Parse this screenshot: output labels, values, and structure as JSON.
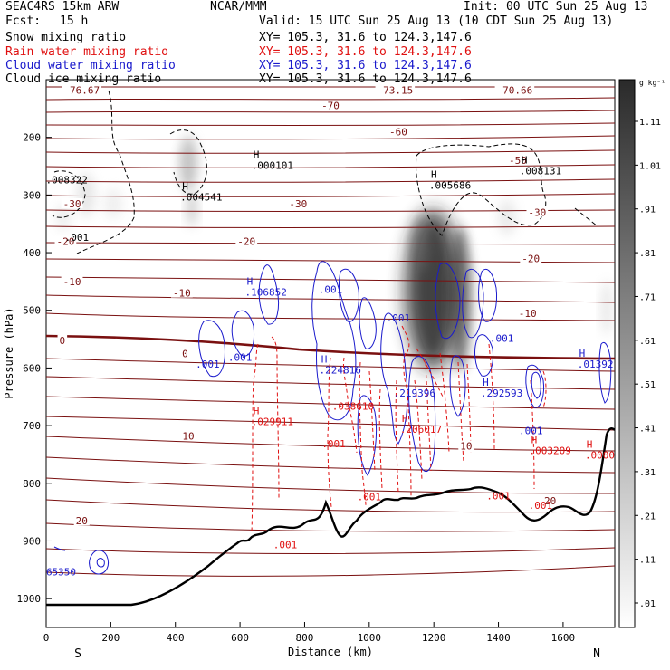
{
  "header": {
    "model": "SEAC4RS 15km ARW",
    "center": "NCAR/MMM",
    "init": "Init: 00 UTC Sun 25 Aug 13",
    "fcst_label": "Fcst:",
    "fcst_value": "15 h",
    "valid": "Valid: 15 UTC Sun 25 Aug 13 (10 CDT Sun 25 Aug 13)",
    "fields": [
      {
        "name": "Snow mixing ratio",
        "xy": "XY= 105.3, 31.6 to 124.3,147.6",
        "color": "#000000"
      },
      {
        "name": "Rain water mixing ratio",
        "xy": "XY= 105.3, 31.6 to 124.3,147.6",
        "color": "#e01010"
      },
      {
        "name": "Cloud water mixing ratio",
        "xy": "XY= 105.3, 31.6 to 124.3,147.6",
        "color": "#1a1acc"
      },
      {
        "name": "Cloud ice mixing ratio",
        "xy": "XY= 105.3, 31.6 to 124.3,147.6",
        "color": "#000000"
      }
    ]
  },
  "chart_data": {
    "type": "cross-section",
    "xlabel": "Distance (km)",
    "ylabel": "Pressure (hPa)",
    "xlim": [
      0,
      1760
    ],
    "ylim": [
      100,
      1050
    ],
    "x_ticks": [
      0,
      200,
      400,
      600,
      800,
      1000,
      1200,
      1400,
      1600
    ],
    "y_ticks": [
      200,
      300,
      400,
      500,
      600,
      700,
      800,
      900,
      1000
    ],
    "direction_left": "S",
    "direction_right": "N",
    "colorbar": {
      "unit": "g kg⁻¹",
      "labels": [
        "1.11",
        "1.01",
        ".91",
        ".81",
        ".71",
        ".61",
        ".51",
        ".41",
        ".31",
        ".21",
        ".11",
        ".01"
      ]
    },
    "temperature_contours": {
      "color": "#7a1010",
      "labels": [
        {
          "text": "-76.67",
          "x": 110,
          "p": 118
        },
        {
          "text": "-73.15",
          "x": 1080,
          "p": 118
        },
        {
          "text": "-70.66",
          "x": 1450,
          "p": 118
        },
        {
          "text": "-70",
          "x": 880,
          "p": 145
        },
        {
          "text": "-60",
          "x": 1090,
          "p": 190
        },
        {
          "text": "-50",
          "x": 1460,
          "p": 240
        },
        {
          "text": "-30",
          "x": 80,
          "p": 315
        },
        {
          "text": "-30",
          "x": 780,
          "p": 315
        },
        {
          "text": "-30",
          "x": 1520,
          "p": 330
        },
        {
          "text": "-20",
          "x": 60,
          "p": 380
        },
        {
          "text": "-20",
          "x": 620,
          "p": 380
        },
        {
          "text": "-20",
          "x": 1500,
          "p": 410
        },
        {
          "text": "-10",
          "x": 80,
          "p": 450
        },
        {
          "text": "-10",
          "x": 420,
          "p": 470
        },
        {
          "text": "-10",
          "x": 1490,
          "p": 505
        },
        {
          "text": "0",
          "x": 50,
          "p": 552
        },
        {
          "text": "0",
          "x": 430,
          "p": 575
        },
        {
          "text": "10",
          "x": 440,
          "p": 718
        },
        {
          "text": "10",
          "x": 1300,
          "p": 735
        },
        {
          "text": "20",
          "x": 110,
          "p": 865
        },
        {
          "text": "20",
          "x": 1560,
          "p": 830
        }
      ]
    },
    "max_labels": [
      {
        "field": "snow",
        "letter": "",
        "text": ".008322",
        "x": 30,
        "p": 270
      },
      {
        "field": "snow",
        "letter": "H",
        "text": ".004541",
        "x": 480,
        "p": 300
      },
      {
        "field": "snow",
        "letter": "H",
        "text": ".000101",
        "x": 700,
        "p": 245
      },
      {
        "field": "snow",
        "letter": "H",
        "text": ".005686",
        "x": 1250,
        "p": 280
      },
      {
        "field": "snow",
        "letter": "H",
        "text": ".008131",
        "x": 1530,
        "p": 255
      },
      {
        "field": "snow",
        "letter": "",
        "text": ".001",
        "x": 95,
        "p": 370
      },
      {
        "field": "cloud",
        "letter": "H",
        "text": ".106852",
        "x": 680,
        "p": 465
      },
      {
        "field": "cloud",
        "letter": "",
        "text": ".001",
        "x": 880,
        "p": 460
      },
      {
        "field": "cloud",
        "letter": "",
        "text": ".001",
        "x": 1090,
        "p": 510
      },
      {
        "field": "cloud",
        "letter": "",
        "text": ".001",
        "x": 1410,
        "p": 545
      },
      {
        "field": "cloud",
        "letter": "",
        "text": ".001",
        "x": 500,
        "p": 590
      },
      {
        "field": "cloud",
        "letter": "",
        "text": ".001",
        "x": 600,
        "p": 578
      },
      {
        "field": "cloud",
        "letter": "H",
        "text": ".224816",
        "x": 910,
        "p": 600
      },
      {
        "field": "cloud",
        "letter": "",
        "text": ".219396",
        "x": 1140,
        "p": 640
      },
      {
        "field": "cloud",
        "letter": "H",
        "text": ".292593",
        "x": 1410,
        "p": 640
      },
      {
        "field": "cloud",
        "letter": "",
        "text": ".001",
        "x": 1500,
        "p": 705
      },
      {
        "field": "cloud",
        "letter": "H",
        "text": ".01392",
        "x": 1700,
        "p": 590
      },
      {
        "field": "cloud",
        "letter": "",
        "text": "65350",
        "x": 40,
        "p": 950
      },
      {
        "field": "rain",
        "letter": "H",
        "text": ".029911",
        "x": 700,
        "p": 690
      },
      {
        "field": "rain",
        "letter": "",
        "text": ".038610",
        "x": 950,
        "p": 663
      },
      {
        "field": "rain",
        "letter": "",
        "text": ".001",
        "x": 890,
        "p": 728
      },
      {
        "field": "rain",
        "letter": "H",
        "text": ".206017",
        "x": 1160,
        "p": 703
      },
      {
        "field": "rain",
        "letter": "H",
        "text": ".003209",
        "x": 1560,
        "p": 740
      },
      {
        "field": "rain",
        "letter": "H",
        "text": ".0000",
        "x": 1740,
        "p": 748
      },
      {
        "field": "rain",
        "letter": "",
        "text": ".001",
        "x": 1000,
        "p": 820
      },
      {
        "field": "rain",
        "letter": "",
        "text": ".001",
        "x": 1400,
        "p": 818
      },
      {
        "field": "rain",
        "letter": "",
        "text": ".001",
        "x": 1530,
        "p": 835
      },
      {
        "field": "rain",
        "letter": "",
        "text": ".001",
        "x": 740,
        "p": 903
      }
    ]
  }
}
